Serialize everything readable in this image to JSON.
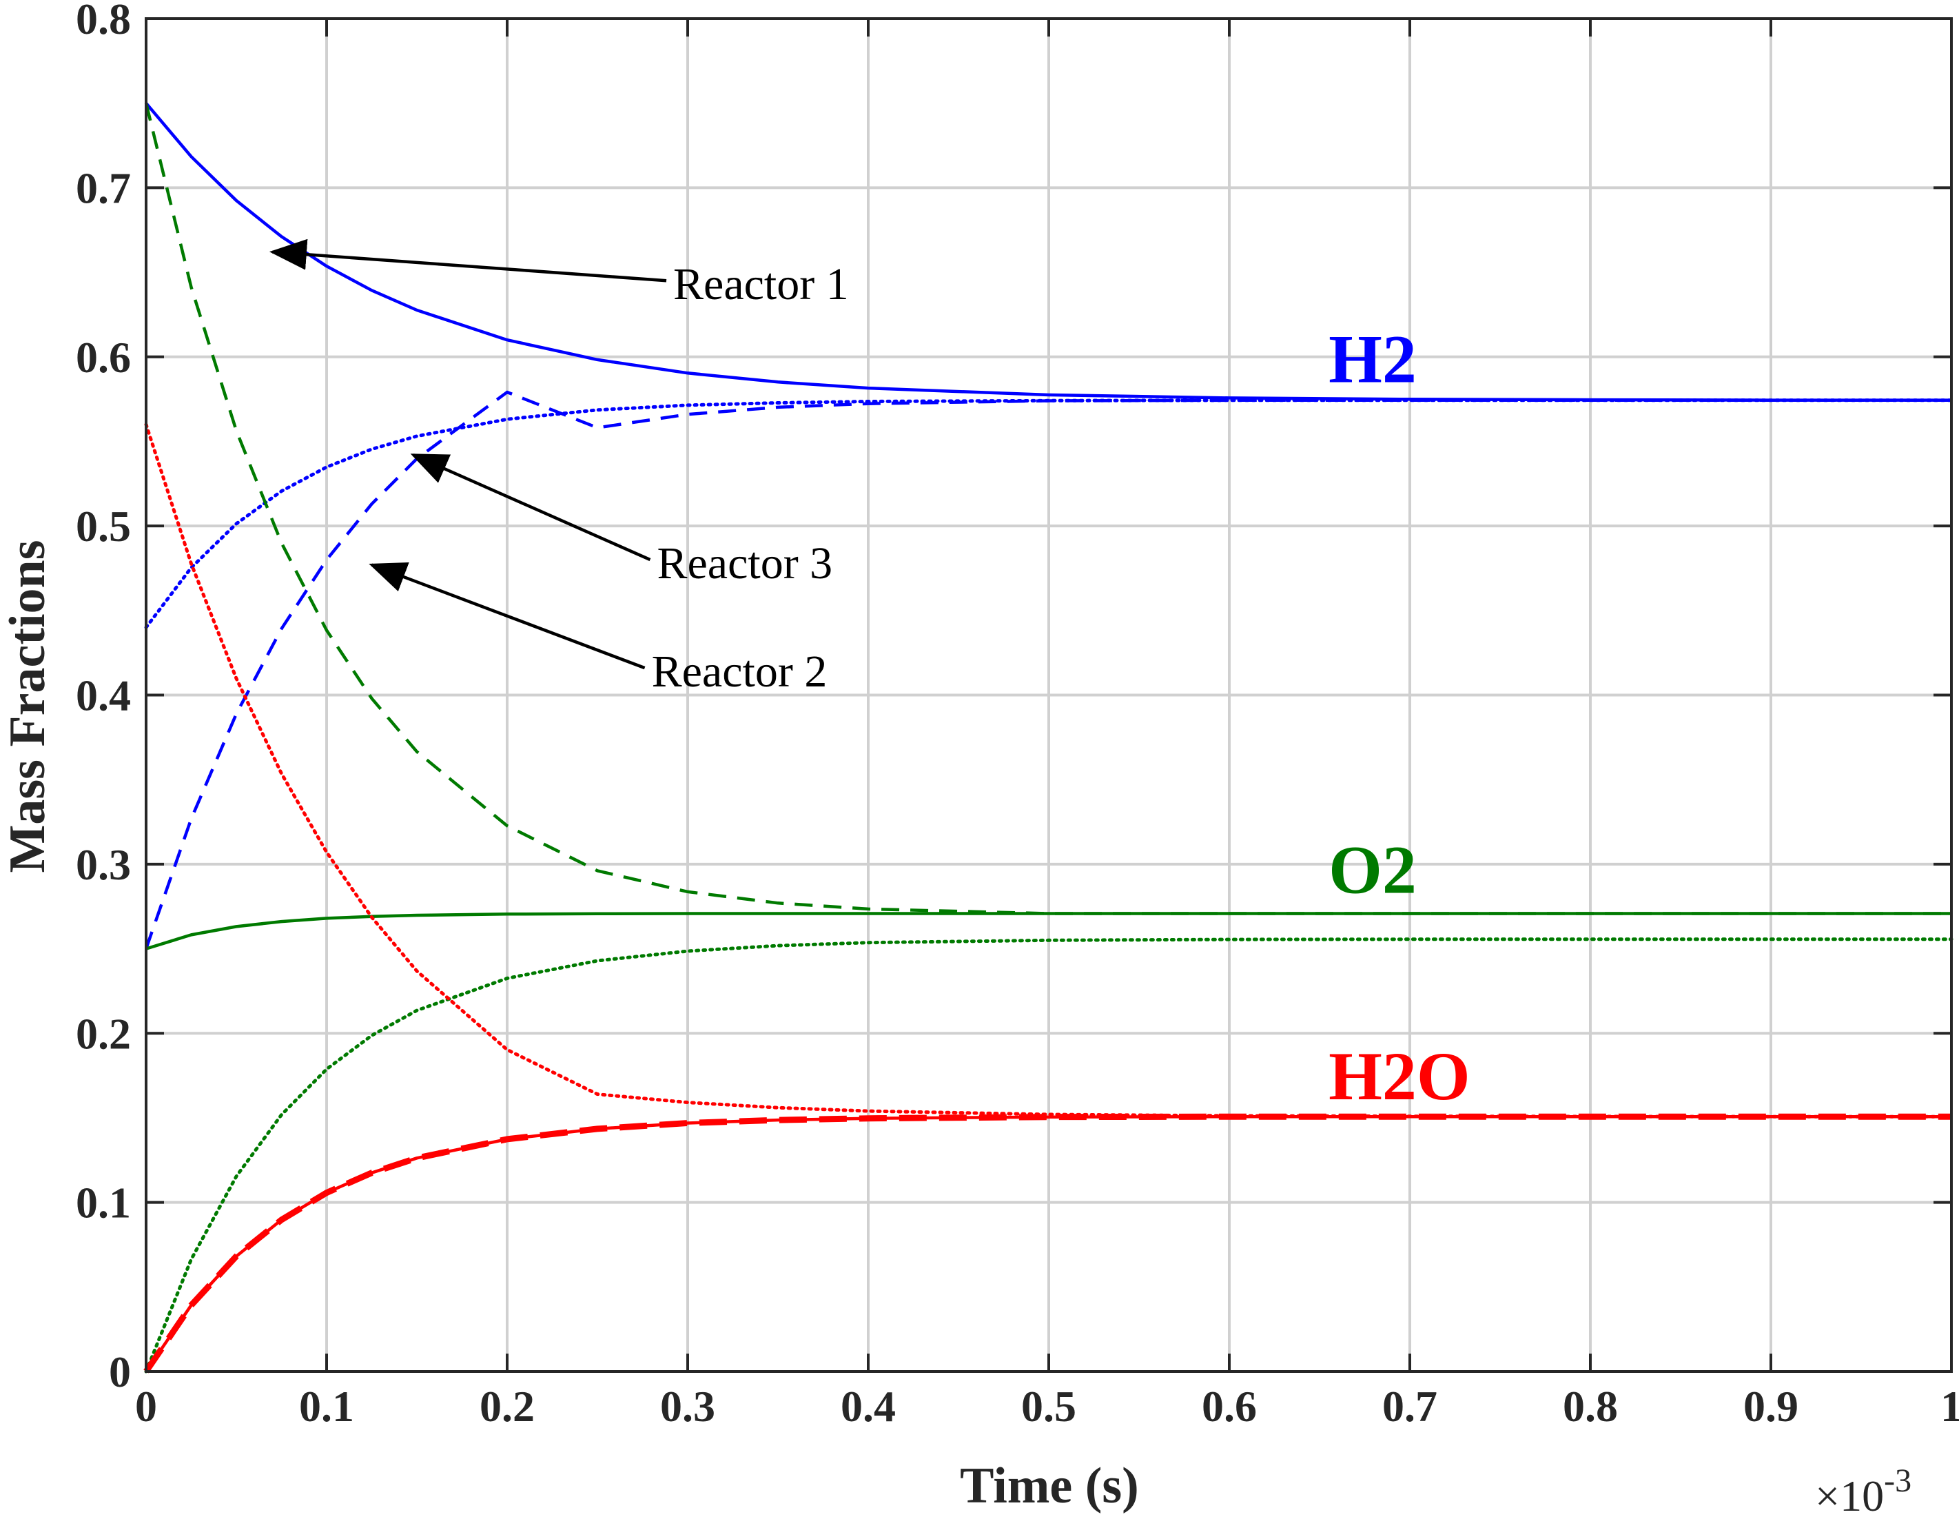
{
  "chart_data": {
    "type": "line",
    "title": "",
    "xlabel": "Time (s)",
    "ylabel": "Mass Fractions",
    "x_exponent_label": "×10",
    "x_exponent_power": "-3",
    "xlim": [
      0,
      1
    ],
    "ylim": [
      0,
      0.8
    ],
    "x_ticks": [
      0,
      0.1,
      0.2,
      0.3,
      0.4,
      0.5,
      0.6,
      0.7,
      0.8,
      0.9,
      1
    ],
    "x_tick_labels": [
      "0",
      "0.1",
      "0.2",
      "0.3",
      "0.4",
      "0.5",
      "0.6",
      "0.7",
      "0.8",
      "0.9",
      "1"
    ],
    "y_ticks": [
      0,
      0.1,
      0.2,
      0.3,
      0.4,
      0.5,
      0.6,
      0.7,
      0.8
    ],
    "y_tick_labels": [
      "0",
      "0.1",
      "0.2",
      "0.3",
      "0.4",
      "0.5",
      "0.6",
      "0.7",
      "0.8"
    ],
    "grid": true,
    "x": [
      0,
      0.025,
      0.05,
      0.075,
      0.1,
      0.125,
      0.15,
      0.2,
      0.25,
      0.3,
      0.35,
      0.4,
      0.5,
      0.6,
      0.7,
      0.8,
      0.9,
      1.0
    ],
    "series": [
      {
        "species": "H2",
        "reactor": "Reactor 1",
        "color": "#0000ff",
        "dash": "solid",
        "width": 4.5,
        "values": [
          0.75,
          0.7184,
          0.6924,
          0.6711,
          0.6536,
          0.6393,
          0.6276,
          0.61,
          0.5983,
          0.5904,
          0.5851,
          0.5815,
          0.5775,
          0.5757,
          0.5749,
          0.5746,
          0.5744,
          0.5744
        ]
      },
      {
        "species": "H2",
        "reactor": "Reactor 2",
        "color": "#0000ff",
        "dash": "dashed",
        "width": 4.5,
        "values": [
          0.25,
          0.3268,
          0.3889,
          0.4392,
          0.48,
          0.513,
          0.5398,
          0.5791,
          0.5581,
          0.566,
          0.5702,
          0.5723,
          0.574,
          0.5743,
          0.5743,
          0.5743,
          0.5743,
          0.5743
        ]
      },
      {
        "species": "H2",
        "reactor": "Reactor 3",
        "color": "#0000ff",
        "dash": "dotted",
        "width": 5,
        "values": [
          0.44,
          0.4753,
          0.5013,
          0.5206,
          0.5348,
          0.5454,
          0.5531,
          0.5631,
          0.5686,
          0.5714,
          0.5728,
          0.5736,
          0.5741,
          0.5743,
          0.5743,
          0.5743,
          0.5743,
          0.5743
        ]
      },
      {
        "species": "O2",
        "reactor": "Reactor 1",
        "color": "#007a00",
        "dash": "solid",
        "width": 4.5,
        "values": [
          0.25,
          0.2582,
          0.2631,
          0.2661,
          0.268,
          0.2691,
          0.2698,
          0.2705,
          0.2707,
          0.2708,
          0.2708,
          0.2708,
          0.2708,
          0.2708,
          0.2708,
          0.2708,
          0.2708,
          0.2708
        ]
      },
      {
        "species": "O2",
        "reactor": "Reactor 2",
        "color": "#007a00",
        "dash": "dashed",
        "width": 4.5,
        "values": [
          0.75,
          0.6412,
          0.5563,
          0.49,
          0.4383,
          0.398,
          0.3665,
          0.3227,
          0.2961,
          0.2837,
          0.277,
          0.2735,
          0.2708,
          0.2708,
          0.2708,
          0.2708,
          0.2708,
          0.2708
        ]
      },
      {
        "species": "O2",
        "reactor": "Reactor 3",
        "color": "#007a00",
        "dash": "dotted",
        "width": 5,
        "values": [
          0.0,
          0.0663,
          0.1154,
          0.1518,
          0.1788,
          0.1987,
          0.2135,
          0.2325,
          0.2429,
          0.2486,
          0.2518,
          0.2536,
          0.255,
          0.2555,
          0.2556,
          0.2556,
          0.2556,
          0.2556
        ]
      },
      {
        "species": "H2O",
        "reactor": "Reactor 1",
        "color": "#ff0000",
        "dash": "solid",
        "width": 4.5,
        "values": [
          0.0,
          0.0392,
          0.0682,
          0.0897,
          0.1057,
          0.1175,
          0.1262,
          0.1374,
          0.1435,
          0.1469,
          0.1487,
          0.1497,
          0.1505,
          0.1507,
          0.1507,
          0.1507,
          0.1507,
          0.1507
        ]
      },
      {
        "species": "H2O",
        "reactor": "Reactor 2",
        "color": "#ff0000",
        "dash": "dashed-thick",
        "width": 9,
        "values": [
          0.0,
          0.0392,
          0.0682,
          0.0897,
          0.1057,
          0.1175,
          0.1262,
          0.1374,
          0.1435,
          0.1469,
          0.1487,
          0.1497,
          0.1505,
          0.1507,
          0.1507,
          0.1507,
          0.1507,
          0.1507
        ]
      },
      {
        "species": "H2O",
        "reactor": "Reactor 3",
        "color": "#ff0000",
        "dash": "dotted",
        "width": 5,
        "values": [
          0.56,
          0.4777,
          0.4098,
          0.3536,
          0.3071,
          0.2686,
          0.2368,
          0.1903,
          0.164,
          0.1591,
          0.156,
          0.154,
          0.152,
          0.1512,
          0.1509,
          0.1508,
          0.1507,
          0.1507
        ]
      }
    ],
    "species_labels": [
      {
        "text": "H2",
        "color": "#0000ff",
        "x": 0.655,
        "y": 0.585
      },
      {
        "text": "O2",
        "color": "#007a00",
        "x": 0.655,
        "y": 0.283
      },
      {
        "text": "H2O",
        "color": "#ff0000",
        "x": 0.655,
        "y": 0.161
      }
    ],
    "annotations": [
      {
        "text": "Reactor 1",
        "text_x": 0.292,
        "text_y": 0.643,
        "arrow_to_x": 0.07,
        "arrow_to_y": 0.662
      },
      {
        "text": "Reactor 3",
        "text_x": 0.283,
        "text_y": 0.478,
        "arrow_to_x": 0.148,
        "arrow_to_y": 0.542
      },
      {
        "text": "Reactor 2",
        "text_x": 0.28,
        "text_y": 0.414,
        "arrow_to_x": 0.125,
        "arrow_to_y": 0.477
      }
    ]
  }
}
